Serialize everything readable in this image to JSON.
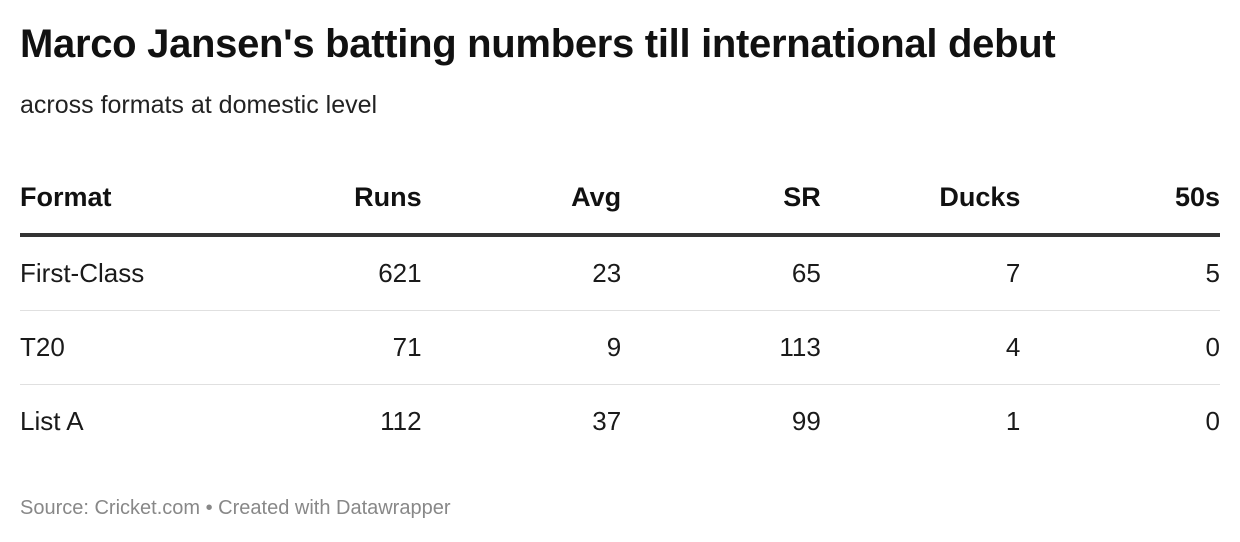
{
  "chart_data": {
    "type": "table",
    "title": "Marco Jansen's batting numbers till international debut",
    "subtitle": "across formats at domestic level",
    "columns": [
      "Format",
      "Runs",
      "Avg",
      "SR",
      "Ducks",
      "50s"
    ],
    "rows": [
      [
        "First-Class",
        "621",
        "23",
        "65",
        "7",
        "5"
      ],
      [
        "T20",
        "71",
        "9",
        "113",
        "4",
        "0"
      ],
      [
        "List A",
        "112",
        "37",
        "99",
        "1",
        "0"
      ]
    ],
    "footer": "Source: Cricket.com • Created with Datawrapper"
  }
}
